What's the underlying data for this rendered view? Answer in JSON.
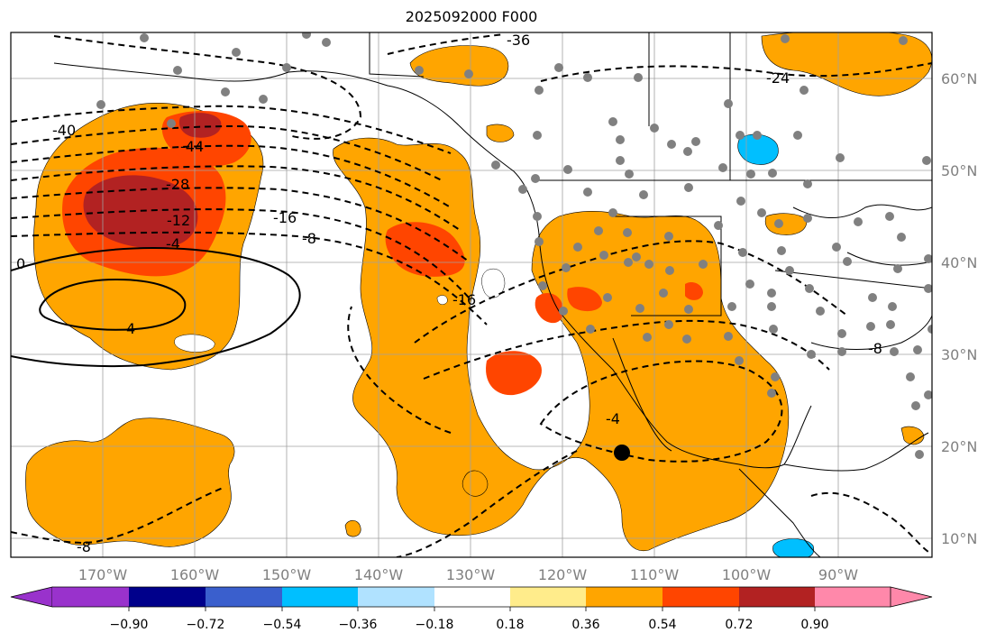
{
  "title": "2025092000 F000",
  "map": {
    "lon_labels": [
      "170°W",
      "160°W",
      "150°W",
      "140°W",
      "130°W",
      "120°W",
      "110°W",
      "100°W",
      "90°W"
    ],
    "lat_labels": [
      "60°N",
      "50°N",
      "40°N",
      "30°N",
      "20°N",
      "10°N"
    ],
    "contour_labels": [
      "-40",
      "-44",
      "-28",
      "-12",
      "-4",
      "-16",
      "-8",
      "0",
      "4",
      "-36",
      "-24",
      "-16",
      "-8",
      "-4",
      "-8"
    ],
    "colors": {
      "orange": "#ffa500",
      "red_orange": "#ff4500",
      "dark_red": "#b22222",
      "light_blue": "#00bfff",
      "station_marker": "#808080",
      "grid": "#a0a0a0"
    }
  },
  "colorbar": {
    "tick_labels": [
      "−0.90",
      "−0.72",
      "−0.54",
      "−0.36",
      "−0.18",
      "0.18",
      "0.36",
      "0.54",
      "0.72",
      "0.90"
    ],
    "bins": [
      {
        "color": "#9932cc"
      },
      {
        "color": "#00008b"
      },
      {
        "color": "#3a5fcd"
      },
      {
        "color": "#00bfff"
      },
      {
        "color": "#b0e2ff"
      },
      {
        "color": "#ffffff"
      },
      {
        "color": "#ffec8b"
      },
      {
        "color": "#ffa500"
      },
      {
        "color": "#ff4500"
      },
      {
        "color": "#b22222"
      },
      {
        "color": "#ff88aa"
      }
    ]
  }
}
